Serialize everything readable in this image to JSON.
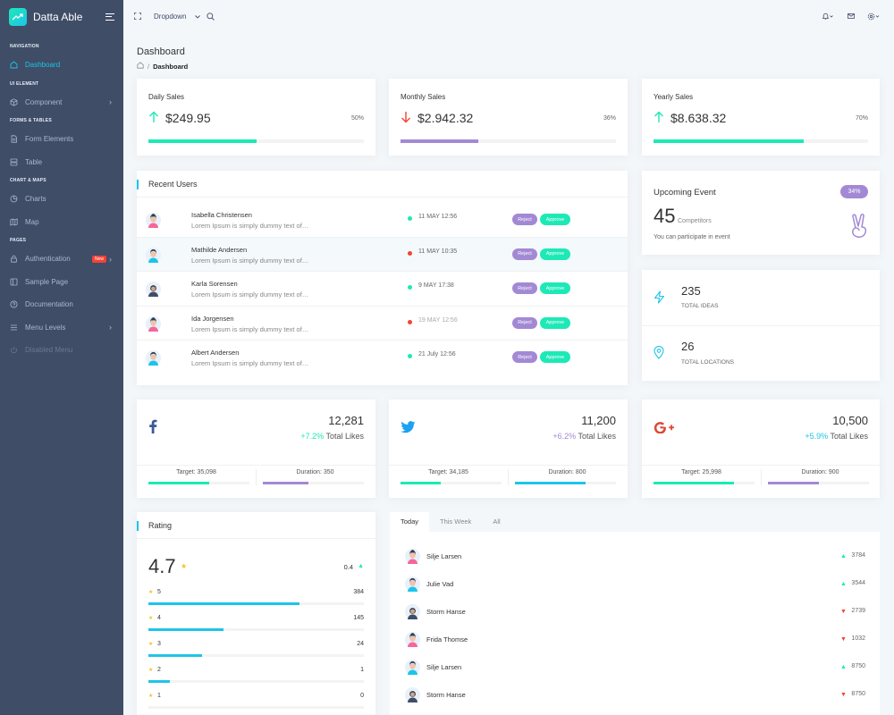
{
  "brand": {
    "name": "Datta Able"
  },
  "sidebar": {
    "sections": [
      {
        "caption": "NAVIGATION",
        "items": [
          {
            "label": "Dashboard",
            "icon": "home-icon",
            "active": true
          }
        ]
      },
      {
        "caption": "UI ELEMENT",
        "items": [
          {
            "label": "Component",
            "icon": "box-icon",
            "chevron": true
          }
        ]
      },
      {
        "caption": "FORMS & TABLES",
        "items": [
          {
            "label": "Form Elements",
            "icon": "file-text-icon"
          },
          {
            "label": "Table",
            "icon": "server-icon"
          }
        ]
      },
      {
        "caption": "CHART & MAPS",
        "items": [
          {
            "label": "Charts",
            "icon": "pie-chart-icon"
          },
          {
            "label": "Map",
            "icon": "map-icon"
          }
        ]
      },
      {
        "caption": "PAGES",
        "items": [
          {
            "label": "Authentication",
            "icon": "lock-icon",
            "badge": "New",
            "chevron": true
          },
          {
            "label": "Sample Page",
            "icon": "sidebar-icon"
          },
          {
            "label": "Documentation",
            "icon": "help-circle-icon"
          },
          {
            "label": "Menu Levels",
            "icon": "menu-icon",
            "chevron": true
          },
          {
            "label": "Disabled Menu",
            "icon": "power-icon",
            "disabled": true
          }
        ]
      }
    ]
  },
  "header": {
    "dropdown_label": "Dropdown"
  },
  "page": {
    "title": "Dashboard",
    "breadcrumb_current": "Dashboard"
  },
  "sales": [
    {
      "title": "Daily Sales",
      "value": "$249.95",
      "percent": "50%",
      "progress": 0.5,
      "direction": "up",
      "color": "#1de9b6"
    },
    {
      "title": "Monthly Sales",
      "value": "$2.942.32",
      "percent": "36%",
      "progress": 0.36,
      "direction": "down",
      "color": "#a389d4"
    },
    {
      "title": "Yearly Sales",
      "value": "$8.638.32",
      "percent": "70%",
      "progress": 0.7,
      "direction": "up",
      "color": "#1de9b6"
    }
  ],
  "recent_users": {
    "title": "Recent Users",
    "reject_label": "Reject",
    "approve_label": "Approve",
    "rows": [
      {
        "name": "Isabella Christensen",
        "desc": "Lorem Ipsum is simply dummy text of…",
        "date": "11 MAY 12:56",
        "status": "green"
      },
      {
        "name": "Mathilde Andersen",
        "desc": "Lorem Ipsum is simply dummy text of…",
        "date": "11 MAY 10:35",
        "status": "red"
      },
      {
        "name": "Karla Sorensen",
        "desc": "Lorem Ipsum is simply dummy text of…",
        "date": "9 MAY 17:38",
        "status": "green"
      },
      {
        "name": "Ida Jorgensen",
        "desc": "Lorem Ipsum is simply dummy text of…",
        "date": "19 MAY 12:56",
        "status": "red"
      },
      {
        "name": "Albert Andersen",
        "desc": "Lorem Ipsum is simply dummy text of…",
        "date": "21 July 12:56",
        "status": "green"
      }
    ]
  },
  "upcoming_event": {
    "title": "Upcoming Event",
    "badge": "34%",
    "count": "45",
    "count_label": "Competitors",
    "note": "You can participate in event"
  },
  "stats": [
    {
      "value": "235",
      "label": "TOTAL IDEAS",
      "icon": "zap-icon"
    },
    {
      "value": "26",
      "label": "TOTAL LOCATIONS",
      "icon": "map-pin-icon"
    }
  ],
  "social": [
    {
      "network": "facebook",
      "count": "12,281",
      "change": "+7.2%",
      "likes_label": "Total Likes",
      "target": "Target: 35,098",
      "duration": "Duration: 350",
      "target_progress": 0.6,
      "duration_progress": 0.45,
      "change_color": "#1de9b6",
      "target_color": "#1de9b6",
      "duration_color": "#a389d4"
    },
    {
      "network": "twitter",
      "count": "11,200",
      "change": "+6.2%",
      "likes_label": "Total Likes",
      "target": "Target: 34,185",
      "duration": "Duration: 800",
      "target_progress": 0.4,
      "duration_progress": 0.7,
      "change_color": "#a389d4",
      "target_color": "#1de9b6",
      "duration_color": "#1dc4e9"
    },
    {
      "network": "google-plus",
      "count": "10,500",
      "change": "+5.9%",
      "likes_label": "Total Likes",
      "target": "Target: 25,998",
      "duration": "Duration: 900",
      "target_progress": 0.8,
      "duration_progress": 0.5,
      "change_color": "#1dc4e9",
      "target_color": "#1de9b6",
      "duration_color": "#a389d4"
    }
  ],
  "rating": {
    "title": "Rating",
    "average": "4.7",
    "change": "0.4",
    "rows": [
      {
        "stars": "5",
        "count": "384",
        "fraction": 0.7
      },
      {
        "stars": "4",
        "count": "145",
        "fraction": 0.35
      },
      {
        "stars": "3",
        "count": "24",
        "fraction": 0.25
      },
      {
        "stars": "2",
        "count": "1",
        "fraction": 0.1
      },
      {
        "stars": "1",
        "count": "0",
        "fraction": 0
      }
    ]
  },
  "activity": {
    "tabs": [
      "Today",
      "This Week",
      "All"
    ],
    "rows": [
      {
        "name": "Silje Larsen",
        "value": "3784",
        "direction": "up"
      },
      {
        "name": "Julie Vad",
        "value": "3544",
        "direction": "up"
      },
      {
        "name": "Storm Hanse",
        "value": "2739",
        "direction": "down"
      },
      {
        "name": "Frida Thomse",
        "value": "1032",
        "direction": "down"
      },
      {
        "name": "Silje Larsen",
        "value": "8750",
        "direction": "up"
      },
      {
        "name": "Storm Hanse",
        "value": "8750",
        "direction": "down"
      }
    ]
  }
}
